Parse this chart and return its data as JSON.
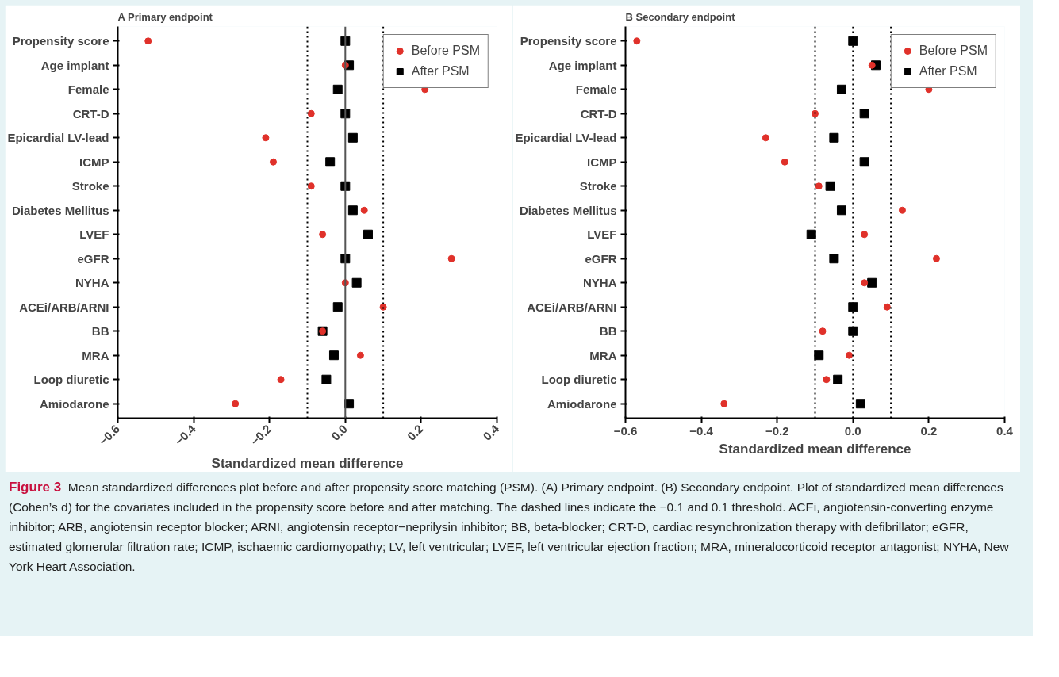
{
  "chart_data": [
    {
      "type": "scatter",
      "title": "A Primary endpoint",
      "xlabel": "Standardized mean difference",
      "categories": [
        "Propensity score",
        "Age implant",
        "Female",
        "CRT-D",
        "Epicardial LV-lead",
        "ICMP",
        "Stroke",
        "Diabetes Mellitus",
        "LVEF",
        "eGFR",
        "NYHA",
        "ACEi/ARB/ARNI",
        "BB",
        "MRA",
        "Loop diuretic",
        "Amiodarone"
      ],
      "series": [
        {
          "name": "Before PSM",
          "color": "#e0312a",
          "marker": "circle",
          "values": [
            -0.52,
            0.0,
            0.21,
            -0.09,
            -0.21,
            -0.19,
            -0.09,
            0.05,
            -0.06,
            0.28,
            0.0,
            0.1,
            -0.06,
            0.04,
            -0.17,
            -0.29
          ]
        },
        {
          "name": "After PSM",
          "color": "#000000",
          "marker": "square",
          "values": [
            0.0,
            0.01,
            -0.02,
            0.0,
            0.02,
            -0.04,
            0.0,
            0.02,
            0.06,
            0.0,
            0.03,
            -0.02,
            -0.06,
            -0.03,
            -0.05,
            0.01
          ]
        }
      ],
      "xlim": [
        -0.6,
        0.4
      ],
      "xticks": [
        {
          "value": -0.6,
          "label": "−0.6"
        },
        {
          "value": -0.4,
          "label": "−0.4"
        },
        {
          "value": -0.2,
          "label": "−0.2"
        },
        {
          "value": 0,
          "label": "0.0"
        },
        {
          "value": 0.2,
          "label": "0.2"
        },
        {
          "value": 0.4,
          "label": "0.4"
        }
      ],
      "ref_lines": [
        {
          "axis": "x",
          "value": -0.1,
          "line_style": "dotted",
          "color": "#000000"
        },
        {
          "axis": "x",
          "value": 0,
          "line_style": "solid",
          "color": "#555555"
        },
        {
          "axis": "x",
          "value": 0.1,
          "line_style": "dotted",
          "color": "#000000"
        }
      ],
      "grid": false,
      "legend": "top right",
      "orientation": "horizontal"
    },
    {
      "type": "scatter",
      "title": "B Secondary endpoint",
      "xlabel": "Standardized mean difference",
      "categories": [
        "Propensity score",
        "Age implant",
        "Female",
        "CRT-D",
        "Epicardial LV-lead",
        "ICMP",
        "Stroke",
        "Diabetes Mellitus",
        "LVEF",
        "eGFR",
        "NYHA",
        "ACEi/ARB/ARNI",
        "BB",
        "MRA",
        "Loop diuretic",
        "Amiodarone"
      ],
      "series": [
        {
          "name": "Before PSM",
          "color": "#e0312a",
          "marker": "circle",
          "values": [
            -0.57,
            0.05,
            0.2,
            -0.1,
            -0.23,
            -0.18,
            -0.09,
            0.13,
            0.03,
            0.22,
            0.03,
            0.09,
            -0.08,
            -0.01,
            -0.07,
            -0.34
          ]
        },
        {
          "name": "After PSM",
          "color": "#000000",
          "marker": "square",
          "values": [
            0.0,
            0.06,
            -0.03,
            0.03,
            -0.05,
            0.03,
            -0.06,
            -0.03,
            -0.11,
            -0.05,
            0.05,
            0.0,
            0.0,
            -0.09,
            -0.04,
            0.02
          ]
        }
      ],
      "xlim": [
        -0.6,
        0.4
      ],
      "xticks": [
        {
          "value": -0.6,
          "label": "−0.6"
        },
        {
          "value": -0.4,
          "label": "−0.4"
        },
        {
          "value": -0.2,
          "label": "−0.2"
        },
        {
          "value": 0,
          "label": "0.0"
        },
        {
          "value": 0.2,
          "label": "0.2"
        },
        {
          "value": 0.4,
          "label": "0.4"
        }
      ],
      "ref_lines": [
        {
          "axis": "x",
          "value": -0.1,
          "line_style": "dotted",
          "color": "#000000"
        },
        {
          "axis": "x",
          "value": 0,
          "line_style": "dotted",
          "color": "#000000"
        },
        {
          "axis": "x",
          "value": 0.1,
          "line_style": "dotted",
          "color": "#000000"
        }
      ],
      "grid": false,
      "legend": "top right",
      "orientation": "horizontal",
      "annotations": [
        "Figure 3",
        "Mean standardized differences plot before and after propensity score matching (PSM). (A) Primary endpoint. (B) Secondary endpoint. Plot of standardized mean differences (Cohen’s d) for the covariates included in the propensity score before and after matching. The dashed lines indicate the −0.1 and 0.1 threshold. ACEi, angiotensin-converting enzyme inhibitor; ARB, angiotensin receptor blocker; ARNI, angiotensin receptor−neprilysin inhibitor; BB, beta-blocker; CRT-D, cardiac resynchronization therapy with defibrillator; eGFR, estimated glomerular filtration rate; ICMP, ischaemic cardiomyopathy; LV, left ventricular; LVEF, left ventricular ejection fraction; MRA, mineralocorticoid receptor antagonist; NYHA, New York Heart Association."
      ]
    }
  ]
}
